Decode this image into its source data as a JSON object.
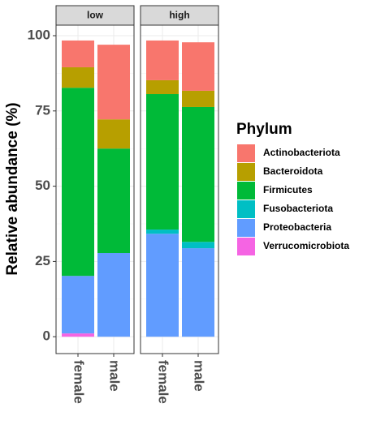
{
  "chart_data": {
    "type": "stacked_bar",
    "ylabel": "Relative abundance (%)",
    "legend_title": "Phylum",
    "facets": [
      "low",
      "high"
    ],
    "categories": [
      "female",
      "male",
      "female",
      "male"
    ],
    "ylim": [
      -5.6,
      103.5
    ],
    "yticks": [
      0,
      25,
      50,
      75,
      100
    ],
    "grid": true,
    "legend": "right",
    "series": [
      {
        "name": "Actinobacteriota",
        "color": "#F8766D",
        "values": [
          8.9,
          24.8,
          13.2,
          16.1
        ]
      },
      {
        "name": "Bacteroidota",
        "color": "#B79F00",
        "values": [
          6.8,
          9.7,
          4.6,
          5.4
        ]
      },
      {
        "name": "Firmicutes",
        "color": "#00BA38",
        "values": [
          62.5,
          34.7,
          45.0,
          44.8
        ]
      },
      {
        "name": "Fusobacteriota",
        "color": "#00BFC4",
        "values": [
          0,
          0,
          1.4,
          2.1
        ]
      },
      {
        "name": "Proteobacteria",
        "color": "#619CFF",
        "values": [
          19.1,
          27.8,
          34.2,
          29.4
        ]
      },
      {
        "name": "Verrucomicrobiota",
        "color": "#F564E3",
        "values": [
          1.1,
          0,
          0,
          0
        ]
      }
    ]
  }
}
